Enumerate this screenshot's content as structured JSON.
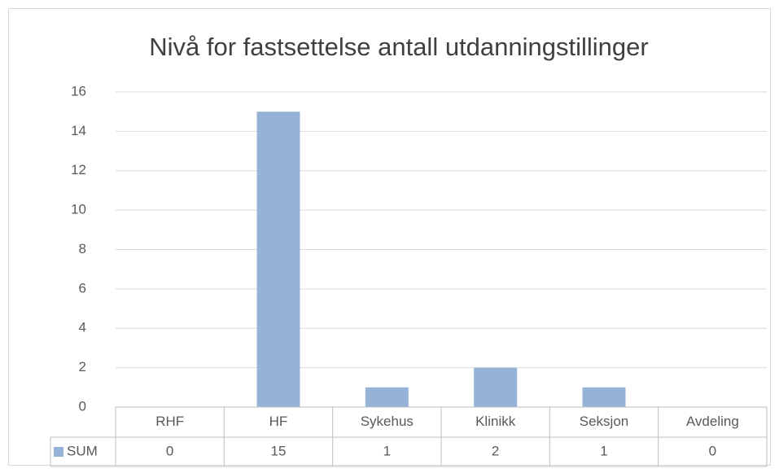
{
  "chart_data": {
    "type": "bar",
    "title": "Nivå for fastsettelse antall utdanningstillinger",
    "categories": [
      "RHF",
      "HF",
      "Sykehus",
      "Klinikk",
      "Seksjon",
      "Avdeling"
    ],
    "series": [
      {
        "name": "SUM",
        "color": "#95b3d7",
        "values": [
          0,
          15,
          1,
          2,
          1,
          0
        ]
      }
    ],
    "ylim": [
      0,
      16
    ],
    "yticks": [
      0,
      2,
      4,
      6,
      8,
      10,
      12,
      14,
      16
    ],
    "grid": true,
    "data_table": true
  }
}
